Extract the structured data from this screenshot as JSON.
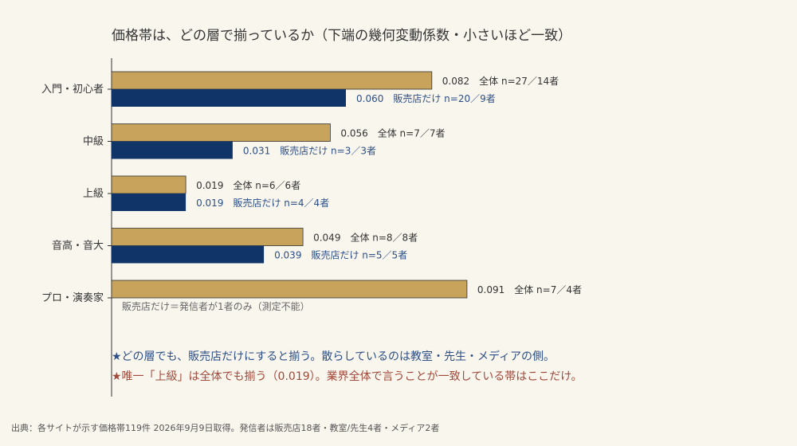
{
  "chart_data": {
    "type": "bar",
    "title": "価格帯は、どの層で揃っているか（下端の幾何変動係数・小さいほど一致）",
    "categories": [
      "入門・初心者",
      "中級",
      "上級",
      "音高・音大",
      "プロ・演奏家"
    ],
    "series": [
      {
        "name": "全体",
        "color": "#c8a35c",
        "values": [
          0.082,
          0.056,
          0.019,
          0.049,
          0.091
        ],
        "labels": [
          "0.082　全体 n=27／14者",
          "0.056　全体 n=7／7者",
          "0.019　全体 n=6／6者",
          "0.049　全体 n=8／8者",
          "0.091　全体 n=7／4者"
        ]
      },
      {
        "name": "販売店だけ",
        "color": "#103468",
        "values": [
          0.06,
          0.031,
          0.019,
          0.039,
          null
        ],
        "labels": [
          "0.060　販売店だけ n=20／9者",
          "0.031　販売店だけ n=3／3者",
          "0.019　販売店だけ n=4／4者",
          "0.039　販売店だけ n=5／5者",
          null
        ]
      }
    ],
    "xlim": [
      0,
      0.105
    ],
    "note": "販売店だけ＝発信者が1者のみ（測定不能）",
    "annotations": [
      {
        "text": "★どの層でも、販売店だけにすると揃う。散らしているのは教室・先生・メディアの側。",
        "color": "#2d4f86"
      },
      {
        "text": "★唯一「上級」は全体でも揃う（0.019）。業界全体で言うことが一致している帯はここだけ。",
        "color": "#a04a3c"
      }
    ],
    "source": "出典：各サイトが示す価格帯119件 2026年9月9日取得。発信者は販売店18者・教室/先生4者・メディア2者"
  }
}
